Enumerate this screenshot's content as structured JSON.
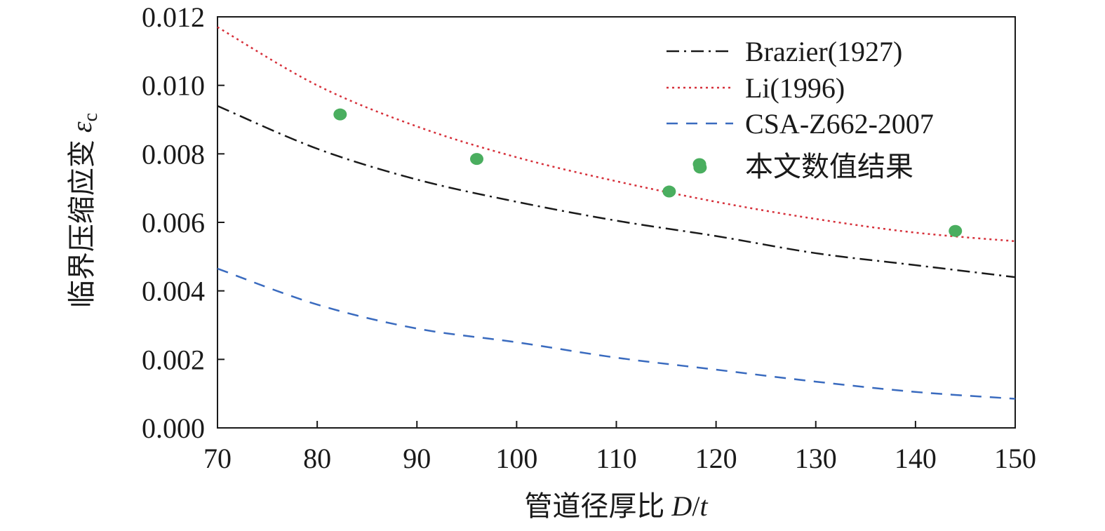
{
  "chart_data": {
    "type": "line",
    "title": "",
    "xlabel": "管道径厚比 ",
    "xlabel_var": "D",
    "xlabel_sep": "/",
    "xlabel_var2": "t",
    "ylabel": "临界压缩应变 ",
    "ylabel_var": "ε",
    "ylabel_sub": "c",
    "xlim": [
      70,
      150
    ],
    "ylim": [
      0.0,
      0.012
    ],
    "xticks": [
      70,
      80,
      90,
      100,
      110,
      120,
      130,
      140,
      150
    ],
    "xtick_labels": [
      "70",
      "80",
      "90",
      "100",
      "110",
      "120",
      "130",
      "140",
      "150"
    ],
    "yticks": [
      0,
      0.002,
      0.004,
      0.006,
      0.008,
      0.01,
      0.012
    ],
    "ytick_labels": [
      "0.000",
      "0.002",
      "0.004",
      "0.006",
      "0.008",
      "0.010",
      "0.012"
    ],
    "grid": false,
    "legend_position": "top-right",
    "series": [
      {
        "name": "Brazier(1927)",
        "style": "dashdot",
        "color": "#1a1a1a",
        "x": [
          70,
          80,
          90,
          100,
          110,
          120,
          130,
          140,
          150
        ],
        "y": [
          0.0094,
          0.00815,
          0.00725,
          0.0066,
          0.00605,
          0.0056,
          0.0051,
          0.00475,
          0.0044
        ]
      },
      {
        "name": "Li(1996)",
        "style": "dotted",
        "color": "#d6303a",
        "x": [
          70,
          80,
          90,
          100,
          110,
          120,
          130,
          140,
          150
        ],
        "y": [
          0.0117,
          0.01,
          0.0088,
          0.0079,
          0.0072,
          0.0066,
          0.0061,
          0.0057,
          0.00545
        ]
      },
      {
        "name": "CSA-Z662-2007",
        "style": "dashed",
        "color": "#3a6bbf",
        "x": [
          70,
          80,
          90,
          100,
          110,
          120,
          130,
          140,
          150
        ],
        "y": [
          0.00465,
          0.0036,
          0.0029,
          0.0025,
          0.00205,
          0.0017,
          0.00135,
          0.00105,
          0.00085
        ]
      },
      {
        "name": "本文数值结果",
        "style": "marker",
        "color": "#4aae5f",
        "x": [
          82.3,
          96.0,
          115.3,
          118.4,
          144.0
        ],
        "y": [
          0.00915,
          0.00785,
          0.0069,
          0.0076,
          0.00575
        ]
      }
    ]
  }
}
